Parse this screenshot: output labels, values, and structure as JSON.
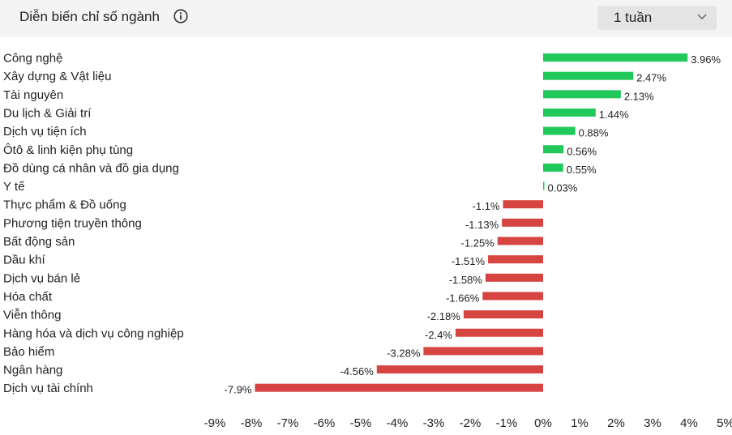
{
  "header": {
    "title": "Diễn biến chỉ số ngành",
    "info_icon": "info-circle-icon",
    "period_selected": "1 tuần",
    "dropdown_icon": "chevron-down-icon"
  },
  "colors": {
    "positive": "#21c85a",
    "negative": "#d64541",
    "text": "#222222",
    "header_bg": "#f4f4f4"
  },
  "chart_data": {
    "type": "bar",
    "orientation": "horizontal",
    "categories": [
      "Công nghệ",
      "Xây dựng & Vật liệu",
      "Tài nguyên",
      "Du lịch & Giải trí",
      "Dịch vụ tiện ích",
      "Ôtô & linh kiện phụ tùng",
      "Đồ dùng cá nhân và đồ gia dụng",
      "Y tế",
      "Thực phẩm & Đồ uống",
      "Phương tiện truyền thông",
      "Bất động sản",
      "Dầu khí",
      "Dịch vụ bán lẻ",
      "Hóa chất",
      "Viễn thông",
      "Hàng hóa và dịch vụ công nghiệp",
      "Bảo hiểm",
      "Ngân hàng",
      "Dịch vụ tài chính"
    ],
    "values": [
      3.96,
      2.47,
      2.13,
      1.44,
      0.88,
      0.56,
      0.55,
      0.03,
      -1.1,
      -1.13,
      -1.25,
      -1.51,
      -1.58,
      -1.66,
      -2.18,
      -2.4,
      -3.28,
      -4.56,
      -7.9
    ],
    "value_labels": [
      "3.96%",
      "2.47%",
      "2.13%",
      "1.44%",
      "0.88%",
      "0.56%",
      "0.55%",
      "0.03%",
      "-1.1%",
      "-1.13%",
      "-1.25%",
      "-1.51%",
      "-1.58%",
      "-1.66%",
      "-2.18%",
      "-2.4%",
      "-3.28%",
      "-4.56%",
      "-7.9%"
    ],
    "x_ticks": [
      -9,
      -8,
      -7,
      -6,
      -5,
      -4,
      -3,
      -2,
      -1,
      0,
      1,
      2,
      3,
      4,
      5
    ],
    "x_tick_labels": [
      "-9%",
      "-8%",
      "-7%",
      "-6%",
      "-5%",
      "-4%",
      "-3%",
      "-2%",
      "-1%",
      "0%",
      "1%",
      "2%",
      "3%",
      "4%",
      "5%"
    ],
    "xlim": [
      -9,
      5
    ],
    "grid": false
  }
}
